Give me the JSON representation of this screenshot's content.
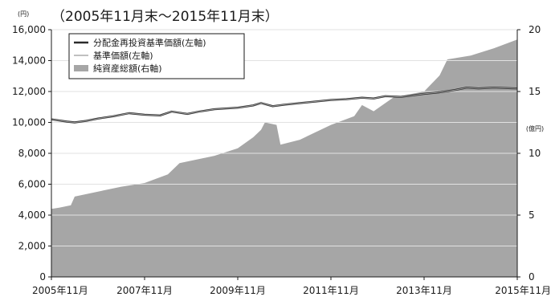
{
  "chart_data": {
    "type": "line",
    "period_title": "（2005年11月末～2015年11月末）",
    "left_axis": {
      "unit": "(円)",
      "ylim": [
        0,
        16000
      ],
      "ticks": [
        0,
        2000,
        4000,
        6000,
        8000,
        10000,
        12000,
        14000,
        16000
      ],
      "tick_labels": [
        "0",
        "2,000",
        "4,000",
        "6,000",
        "8,000",
        "10,000",
        "12,000",
        "14,000",
        "16,000"
      ]
    },
    "right_axis": {
      "unit": "(億円)",
      "ylim": [
        0,
        20
      ],
      "ticks": [
        0,
        5,
        10,
        15,
        20
      ],
      "tick_labels": [
        "0",
        "5",
        "10",
        "15",
        "20"
      ]
    },
    "x_axis": {
      "range": [
        "2005-11",
        "2015-11"
      ],
      "ticks": [
        "2005-11",
        "2007-11",
        "2009-11",
        "2011-11",
        "2013-11",
        "2015-11"
      ],
      "tick_labels": [
        "2005年11月",
        "2007年11月",
        "2009年11月",
        "2011年11月",
        "2013年11月",
        "2015年11月"
      ]
    },
    "grid": true,
    "legend": {
      "placement": "top-left",
      "entries": [
        "分配金再投資基準価額(左軸)",
        "基準価額(左軸)",
        "純資産総額(右軸)"
      ]
    },
    "series": [
      {
        "name": "分配金再投資基準価額(左軸)",
        "axis": "left",
        "style": "line",
        "color": "#2b2b2b",
        "points": [
          [
            "2005-11",
            10200
          ],
          [
            "2006-03",
            10050
          ],
          [
            "2006-05",
            10000
          ],
          [
            "2006-08",
            10100
          ],
          [
            "2006-11",
            10250
          ],
          [
            "2007-03",
            10400
          ],
          [
            "2007-07",
            10600
          ],
          [
            "2007-11",
            10500
          ],
          [
            "2008-03",
            10450
          ],
          [
            "2008-06",
            10700
          ],
          [
            "2008-10",
            10550
          ],
          [
            "2009-01",
            10700
          ],
          [
            "2009-05",
            10850
          ],
          [
            "2009-11",
            10950
          ],
          [
            "2010-03",
            11100
          ],
          [
            "2010-05",
            11250
          ],
          [
            "2010-08",
            11050
          ],
          [
            "2010-11",
            11150
          ],
          [
            "2011-03",
            11250
          ],
          [
            "2011-11",
            11450
          ],
          [
            "2012-03",
            11500
          ],
          [
            "2012-07",
            11600
          ],
          [
            "2012-10",
            11550
          ],
          [
            "2013-01",
            11700
          ],
          [
            "2013-05",
            11650
          ],
          [
            "2013-11",
            11850
          ],
          [
            "2014-03",
            11950
          ],
          [
            "2014-07",
            12100
          ],
          [
            "2014-10",
            12250
          ],
          [
            "2015-01",
            12200
          ],
          [
            "2015-05",
            12250
          ],
          [
            "2015-11",
            12200
          ]
        ]
      },
      {
        "name": "基準価額(左軸)",
        "axis": "left",
        "style": "line",
        "color": "#9a9a9a",
        "points": [
          [
            "2005-11",
            10200
          ],
          [
            "2006-03",
            10050
          ],
          [
            "2006-05",
            10000
          ],
          [
            "2006-08",
            10100
          ],
          [
            "2006-11",
            10250
          ],
          [
            "2007-03",
            10400
          ],
          [
            "2007-07",
            10600
          ],
          [
            "2007-11",
            10500
          ],
          [
            "2008-03",
            10450
          ],
          [
            "2008-06",
            10700
          ],
          [
            "2008-10",
            10550
          ],
          [
            "2009-01",
            10700
          ],
          [
            "2009-05",
            10850
          ],
          [
            "2009-11",
            10950
          ],
          [
            "2010-03",
            11100
          ],
          [
            "2010-05",
            11250
          ],
          [
            "2010-08",
            11050
          ],
          [
            "2010-11",
            11150
          ],
          [
            "2011-03",
            11250
          ],
          [
            "2011-11",
            11450
          ],
          [
            "2012-03",
            11500
          ],
          [
            "2012-07",
            11600
          ],
          [
            "2012-10",
            11550
          ],
          [
            "2013-01",
            11700
          ],
          [
            "2013-05",
            11650
          ],
          [
            "2013-11",
            11850
          ],
          [
            "2014-03",
            11950
          ],
          [
            "2014-07",
            12100
          ],
          [
            "2014-10",
            12250
          ],
          [
            "2015-01",
            12200
          ],
          [
            "2015-05",
            12250
          ],
          [
            "2015-11",
            12200
          ]
        ]
      },
      {
        "name": "純資産総額(右軸)",
        "axis": "right",
        "style": "area",
        "color": "#a6a6a6",
        "points": [
          [
            "2005-11",
            5.5
          ],
          [
            "2006-01",
            5.6
          ],
          [
            "2006-04",
            5.8
          ],
          [
            "2006-05",
            6.5
          ],
          [
            "2006-11",
            6.9
          ],
          [
            "2007-05",
            7.3
          ],
          [
            "2007-11",
            7.6
          ],
          [
            "2008-05",
            8.3
          ],
          [
            "2008-08",
            9.2
          ],
          [
            "2009-05",
            9.8
          ],
          [
            "2009-11",
            10.4
          ],
          [
            "2010-03",
            11.3
          ],
          [
            "2010-05",
            11.9
          ],
          [
            "2010-06",
            12.5
          ],
          [
            "2010-09",
            12.3
          ],
          [
            "2010-10",
            10.7
          ],
          [
            "2011-03",
            11.1
          ],
          [
            "2011-11",
            12.3
          ],
          [
            "2012-05",
            13.0
          ],
          [
            "2012-07",
            13.9
          ],
          [
            "2012-10",
            13.4
          ],
          [
            "2013-03",
            14.5
          ],
          [
            "2013-11",
            15.0
          ],
          [
            "2014-03",
            16.3
          ],
          [
            "2014-05",
            17.6
          ],
          [
            "2014-11",
            17.9
          ],
          [
            "2015-05",
            18.5
          ],
          [
            "2015-11",
            19.2
          ]
        ]
      }
    ]
  }
}
